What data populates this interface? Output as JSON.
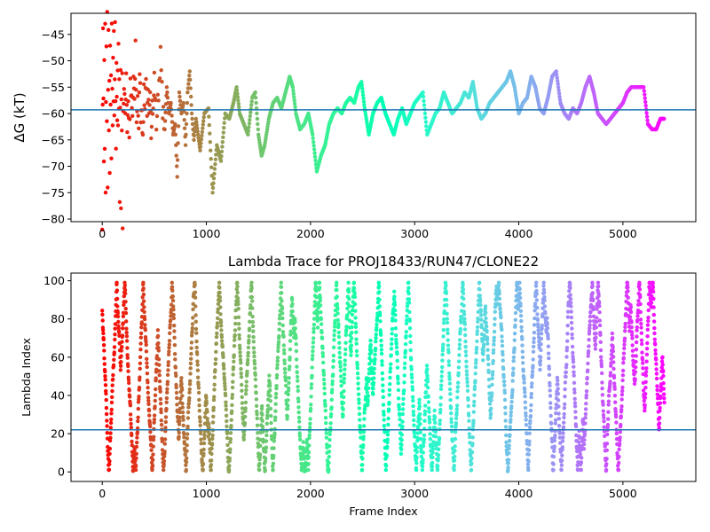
{
  "chart_data": [
    {
      "type": "scatter",
      "title": "",
      "xlabel": "",
      "ylabel": "ΔG (kT)",
      "xlim": [
        -300,
        5700
      ],
      "ylim": [
        -80.5,
        -41
      ],
      "xticks": [
        0,
        1000,
        2000,
        3000,
        4000,
        5000
      ],
      "yticks": [
        -80,
        -75,
        -70,
        -65,
        -60,
        -55,
        -50,
        -45
      ],
      "hline": -59.3,
      "hline_color": "#1f77b4",
      "colormap": "rainbow",
      "grid": false,
      "segments": [
        [
          0,
          -80
        ],
        [
          4,
          -60
        ],
        [
          8,
          -43
        ],
        [
          12,
          -56
        ],
        [
          16,
          -70
        ],
        [
          20,
          -50
        ],
        [
          24,
          -66
        ],
        [
          28,
          -44
        ],
        [
          32,
          -76
        ],
        [
          36,
          -58
        ],
        [
          40,
          -48
        ],
        [
          44,
          -62
        ],
        [
          48,
          -42
        ],
        [
          52,
          -73
        ],
        [
          56,
          -55
        ],
        [
          60,
          -45
        ],
        [
          64,
          -64
        ],
        [
          68,
          -52
        ],
        [
          72,
          -72
        ],
        [
          76,
          -47
        ],
        [
          80,
          -60
        ],
        [
          84,
          -54
        ],
        [
          88,
          -67
        ],
        [
          92,
          -43
        ],
        [
          96,
          -57
        ],
        [
          100,
          -63
        ],
        [
          104,
          -50
        ],
        [
          108,
          -58
        ],
        [
          112,
          -46
        ],
        [
          116,
          -62
        ],
        [
          120,
          -53
        ],
        [
          124,
          -42
        ],
        [
          128,
          -59
        ],
        [
          132,
          -66
        ],
        [
          136,
          -49
        ],
        [
          140,
          -56
        ],
        [
          144,
          -61
        ],
        [
          148,
          -51
        ],
        [
          152,
          -64
        ],
        [
          156,
          -47
        ],
        [
          160,
          -60
        ],
        [
          164,
          -55
        ],
        [
          168,
          -75
        ],
        [
          172,
          -58
        ],
        [
          176,
          -52
        ],
        [
          180,
          -78
        ],
        [
          184,
          -57
        ],
        [
          188,
          -62
        ],
        [
          192,
          -54
        ],
        [
          196,
          -80
        ],
        [
          200,
          -59
        ],
        [
          210,
          -56
        ],
        [
          220,
          -60
        ],
        [
          230,
          -52
        ],
        [
          240,
          -63
        ],
        [
          250,
          -57
        ],
        [
          260,
          -65
        ],
        [
          270,
          -55
        ],
        [
          280,
          -58
        ],
        [
          290,
          -61
        ],
        [
          300,
          -53
        ],
        [
          310,
          -59
        ],
        [
          320,
          -47
        ],
        [
          330,
          -62
        ],
        [
          340,
          -56
        ],
        [
          350,
          -64
        ],
        [
          360,
          -51
        ],
        [
          370,
          -60
        ],
        [
          380,
          -58
        ],
        [
          390,
          -66
        ],
        [
          400,
          -55
        ],
        [
          410,
          -59
        ],
        [
          420,
          -52
        ],
        [
          430,
          -62
        ],
        [
          440,
          -57
        ],
        [
          450,
          -61
        ],
        [
          460,
          -54
        ],
        [
          470,
          -63
        ],
        [
          480,
          -58
        ],
        [
          490,
          -60
        ],
        [
          500,
          -53
        ],
        [
          520,
          -62
        ],
        [
          540,
          -56
        ],
        [
          560,
          -49
        ],
        [
          580,
          -59
        ],
        [
          600,
          -63
        ],
        [
          620,
          -55
        ],
        [
          640,
          -60
        ],
        [
          660,
          -58
        ],
        [
          680,
          -64
        ],
        [
          700,
          -62
        ],
        [
          720,
          -72
        ],
        [
          740,
          -56
        ],
        [
          760,
          -60
        ],
        [
          780,
          -58
        ],
        [
          800,
          -66
        ],
        [
          820,
          -56
        ],
        [
          840,
          -52
        ],
        [
          860,
          -60
        ],
        [
          880,
          -65
        ],
        [
          900,
          -61
        ],
        [
          940,
          -67
        ],
        [
          980,
          -60
        ],
        [
          1020,
          -59
        ],
        [
          1060,
          -75
        ],
        [
          1100,
          -66
        ],
        [
          1140,
          -69
        ],
        [
          1180,
          -60
        ],
        [
          1220,
          -61
        ],
        [
          1260,
          -58
        ],
        [
          1290,
          -55
        ],
        [
          1320,
          -60
        ],
        [
          1360,
          -62
        ],
        [
          1400,
          -64
        ],
        [
          1440,
          -57
        ],
        [
          1470,
          -56
        ],
        [
          1500,
          -64
        ],
        [
          1530,
          -68
        ],
        [
          1560,
          -66
        ],
        [
          1600,
          -61
        ],
        [
          1640,
          -58
        ],
        [
          1680,
          -57
        ],
        [
          1720,
          -59
        ],
        [
          1760,
          -56
        ],
        [
          1800,
          -53
        ],
        [
          1830,
          -55
        ],
        [
          1860,
          -60
        ],
        [
          1900,
          -63
        ],
        [
          1940,
          -62
        ],
        [
          1980,
          -60
        ],
        [
          2020,
          -64
        ],
        [
          2060,
          -71
        ],
        [
          2100,
          -68
        ],
        [
          2140,
          -66
        ],
        [
          2180,
          -62
        ],
        [
          2220,
          -60
        ],
        [
          2260,
          -59
        ],
        [
          2300,
          -60
        ],
        [
          2340,
          -58
        ],
        [
          2380,
          -57
        ],
        [
          2420,
          -58
        ],
        [
          2460,
          -55
        ],
        [
          2490,
          -54
        ],
        [
          2520,
          -59
        ],
        [
          2560,
          -64
        ],
        [
          2600,
          -60
        ],
        [
          2640,
          -58
        ],
        [
          2680,
          -57
        ],
        [
          2720,
          -60
        ],
        [
          2760,
          -62
        ],
        [
          2800,
          -64
        ],
        [
          2840,
          -61
        ],
        [
          2880,
          -59
        ],
        [
          2920,
          -62
        ],
        [
          2960,
          -60
        ],
        [
          3000,
          -58
        ],
        [
          3040,
          -57
        ],
        [
          3080,
          -56
        ],
        [
          3120,
          -64
        ],
        [
          3160,
          -62
        ],
        [
          3200,
          -60
        ],
        [
          3240,
          -59
        ],
        [
          3280,
          -56
        ],
        [
          3320,
          -58
        ],
        [
          3360,
          -60
        ],
        [
          3400,
          -59
        ],
        [
          3440,
          -58
        ],
        [
          3480,
          -56
        ],
        [
          3520,
          -57
        ],
        [
          3560,
          -54
        ],
        [
          3600,
          -59
        ],
        [
          3640,
          -61
        ],
        [
          3680,
          -60
        ],
        [
          3720,
          -58
        ],
        [
          3760,
          -57
        ],
        [
          3800,
          -56
        ],
        [
          3840,
          -55
        ],
        [
          3880,
          -54
        ],
        [
          3920,
          -52
        ],
        [
          3960,
          -55
        ],
        [
          4000,
          -60
        ],
        [
          4040,
          -58
        ],
        [
          4080,
          -57
        ],
        [
          4120,
          -53
        ],
        [
          4160,
          -55
        ],
        [
          4200,
          -59
        ],
        [
          4240,
          -60
        ],
        [
          4280,
          -57
        ],
        [
          4320,
          -53
        ],
        [
          4360,
          -52
        ],
        [
          4400,
          -58
        ],
        [
          4440,
          -60
        ],
        [
          4480,
          -61
        ],
        [
          4520,
          -59
        ],
        [
          4560,
          -60
        ],
        [
          4600,
          -58
        ],
        [
          4640,
          -55
        ],
        [
          4680,
          -53
        ],
        [
          4720,
          -56
        ],
        [
          4760,
          -60
        ],
        [
          4800,
          -61
        ],
        [
          4840,
          -62
        ],
        [
          4880,
          -61
        ],
        [
          4920,
          -60
        ],
        [
          4960,
          -59
        ],
        [
          5000,
          -58
        ],
        [
          5040,
          -56
        ],
        [
          5080,
          -55
        ],
        [
          5120,
          -55
        ],
        [
          5160,
          -55
        ],
        [
          5200,
          -55
        ],
        [
          5240,
          -62
        ],
        [
          5280,
          -63
        ],
        [
          5320,
          -63
        ],
        [
          5360,
          -61
        ],
        [
          5400,
          -61
        ]
      ]
    },
    {
      "type": "scatter",
      "title": "Lambda Trace for PROJ18433/RUN47/CLONE22",
      "xlabel": "Frame Index",
      "ylabel": "Lambda Index",
      "xlim": [
        -300,
        5700
      ],
      "ylim": [
        -5,
        104
      ],
      "xticks": [
        0,
        1000,
        2000,
        3000,
        4000,
        5000
      ],
      "yticks": [
        0,
        20,
        40,
        60,
        80,
        100
      ],
      "hline": 22,
      "hline_color": "#1f77b4",
      "colormap": "rainbow",
      "grid": false,
      "x_range": [
        0,
        5400
      ],
      "y_range": [
        0,
        99
      ],
      "frames": 5400
    }
  ]
}
